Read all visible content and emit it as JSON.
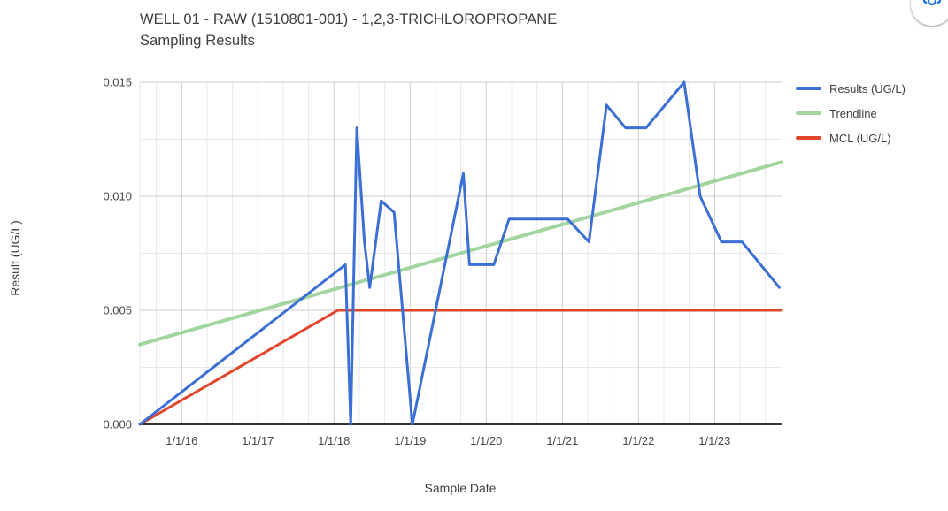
{
  "header": {
    "title_line1": "WELL 01 - RAW (1510801-001) - 1,2,3-TRICHLOROPROPANE",
    "title_line2": "Sampling Results"
  },
  "legend": {
    "position": "right-top",
    "items": [
      {
        "label": "Results (UG/L)",
        "color": "#3B6FD5"
      },
      {
        "label": "Trendline",
        "color": "#A3D5A0"
      },
      {
        "label": "MCL (UG/L)",
        "color": "#E1462D"
      }
    ]
  },
  "axes": {
    "x_title": "Sample Date",
    "y_title": "Result (UG/L)"
  },
  "icons": {
    "corner_button": "move-chart-handle-icon"
  },
  "chart_data": {
    "type": "line",
    "title": "WELL 01 - RAW (1510801-001) - 1,2,3-TRICHLOROPROPANE Sampling Results",
    "xlabel": "Sample Date",
    "ylabel": "Result (UG/L)",
    "x_unit": "decimal_year",
    "xlim": [
      2015.45,
      2023.88
    ],
    "ylim": [
      0,
      0.015
    ],
    "grid": {
      "major_color": "#cccccc",
      "minor_color": "#e9e9e9",
      "x_minor_step": 0.333333,
      "y_minor_step": 0.0025,
      "axis_line_color": "#333333"
    },
    "x_ticks": [
      {
        "v": 2016,
        "label": "1/1/16"
      },
      {
        "v": 2017,
        "label": "1/1/17"
      },
      {
        "v": 2018,
        "label": "1/1/18"
      },
      {
        "v": 2019,
        "label": "1/1/19"
      },
      {
        "v": 2020,
        "label": "1/1/20"
      },
      {
        "v": 2021,
        "label": "1/1/21"
      },
      {
        "v": 2022,
        "label": "1/1/22"
      },
      {
        "v": 2023,
        "label": "1/1/23"
      }
    ],
    "y_ticks": [
      {
        "v": 0,
        "label": "0.000"
      },
      {
        "v": 0.005,
        "label": "0.005"
      },
      {
        "v": 0.01,
        "label": "0.010"
      },
      {
        "v": 0.015,
        "label": "0.015"
      }
    ],
    "series": [
      {
        "name": "Results (UG/L)",
        "color": "#3B6FD5",
        "stroke_width": 3,
        "points": [
          [
            2015.45,
            0.0
          ],
          [
            2018.15,
            0.007
          ],
          [
            2018.22,
            0.0
          ],
          [
            2018.3,
            0.013
          ],
          [
            2018.4,
            0.008
          ],
          [
            2018.47,
            0.006
          ],
          [
            2018.62,
            0.0098
          ],
          [
            2018.79,
            0.0093
          ],
          [
            2019.03,
            0.0
          ],
          [
            2019.7,
            0.011
          ],
          [
            2019.78,
            0.007
          ],
          [
            2020.1,
            0.007
          ],
          [
            2020.3,
            0.009
          ],
          [
            2021.07,
            0.009
          ],
          [
            2021.35,
            0.008
          ],
          [
            2021.58,
            0.014
          ],
          [
            2021.83,
            0.013
          ],
          [
            2022.1,
            0.013
          ],
          [
            2022.6,
            0.015
          ],
          [
            2022.81,
            0.01
          ],
          [
            2023.09,
            0.008
          ],
          [
            2023.36,
            0.008
          ],
          [
            2023.85,
            0.006
          ]
        ]
      },
      {
        "name": "Trendline",
        "color": "#A3D5A0",
        "stroke_width": 4,
        "points": [
          [
            2015.45,
            0.0035
          ],
          [
            2023.88,
            0.0115
          ]
        ]
      },
      {
        "name": "MCL (UG/L)",
        "color": "#E1462D",
        "stroke_width": 3,
        "points": [
          [
            2015.45,
            0.0
          ],
          [
            2018.05,
            0.005
          ],
          [
            2023.88,
            0.005
          ]
        ]
      }
    ],
    "draw_order": [
      1,
      2,
      0
    ],
    "legend_position": "right"
  }
}
